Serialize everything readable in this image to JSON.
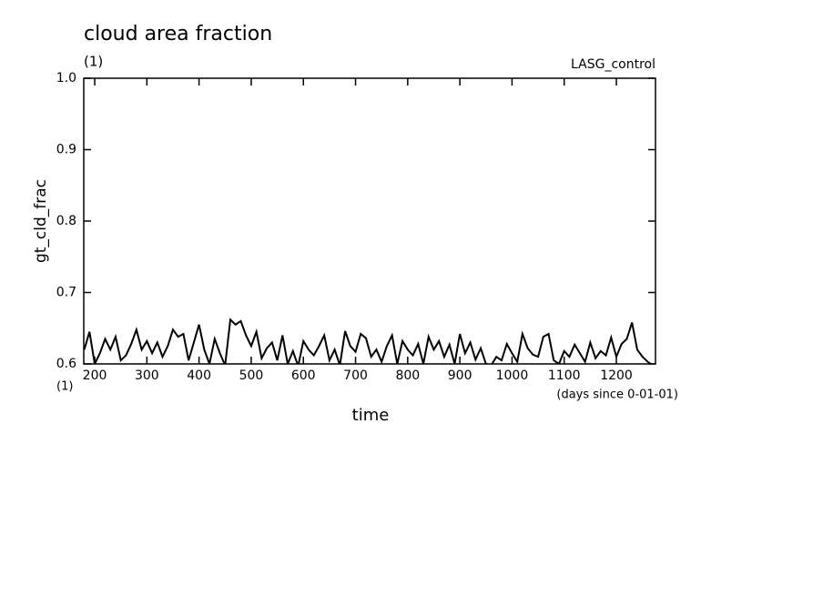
{
  "chart_data": {
    "type": "line",
    "title": "cloud area fraction",
    "subtitle": "(1)",
    "annotation": "LASG_control",
    "y_label": "gt_cld_frac",
    "x_label": "time",
    "x_unit": "(1)",
    "x_units_note": "(days since 0-01-01)",
    "color": "#000000",
    "x": [
      180,
      190,
      200,
      210,
      220,
      230,
      240,
      250,
      260,
      270,
      280,
      290,
      300,
      310,
      320,
      330,
      340,
      350,
      360,
      370,
      380,
      390,
      400,
      410,
      420,
      430,
      440,
      450,
      460,
      470,
      480,
      490,
      500,
      510,
      520,
      530,
      540,
      550,
      560,
      570,
      580,
      590,
      600,
      610,
      620,
      630,
      640,
      650,
      660,
      670,
      680,
      690,
      700,
      710,
      720,
      730,
      740,
      750,
      760,
      770,
      780,
      790,
      800,
      810,
      820,
      830,
      840,
      850,
      860,
      870,
      880,
      890,
      900,
      910,
      920,
      930,
      940,
      950,
      960,
      970,
      980,
      990,
      1000,
      1010,
      1020,
      1030,
      1040,
      1050,
      1060,
      1070,
      1080,
      1090,
      1100,
      1110,
      1120,
      1130,
      1140,
      1150,
      1160,
      1170,
      1180,
      1190,
      1200,
      1210,
      1220,
      1230,
      1240,
      1250,
      1260,
      1270
    ],
    "values": [
      0.62,
      0.645,
      0.6,
      0.615,
      0.635,
      0.62,
      0.638,
      0.605,
      0.612,
      0.628,
      0.648,
      0.62,
      0.632,
      0.615,
      0.63,
      0.61,
      0.625,
      0.648,
      0.638,
      0.642,
      0.605,
      0.63,
      0.655,
      0.62,
      0.6,
      0.635,
      0.615,
      0.598,
      0.662,
      0.655,
      0.66,
      0.64,
      0.625,
      0.645,
      0.608,
      0.622,
      0.63,
      0.605,
      0.64,
      0.6,
      0.618,
      0.597,
      0.632,
      0.62,
      0.612,
      0.625,
      0.64,
      0.605,
      0.62,
      0.598,
      0.646,
      0.625,
      0.617,
      0.642,
      0.636,
      0.61,
      0.62,
      0.603,
      0.625,
      0.64,
      0.6,
      0.632,
      0.62,
      0.612,
      0.628,
      0.6,
      0.638,
      0.62,
      0.632,
      0.61,
      0.627,
      0.6,
      0.642,
      0.615,
      0.63,
      0.606,
      0.622,
      0.6,
      0.598,
      0.61,
      0.605,
      0.628,
      0.615,
      0.603,
      0.642,
      0.622,
      0.613,
      0.61,
      0.638,
      0.642,
      0.605,
      0.6,
      0.618,
      0.61,
      0.627,
      0.615,
      0.603,
      0.63,
      0.608,
      0.618,
      0.612,
      0.637,
      0.61,
      0.628,
      0.635,
      0.658,
      0.62,
      0.61,
      0.603,
      0.598
    ],
    "xlim": [
      179,
      1275
    ],
    "ylim": [
      0.6,
      1.0
    ],
    "xticks": [
      200,
      300,
      400,
      500,
      600,
      700,
      800,
      900,
      1000,
      1100,
      1200
    ],
    "yticks": [
      0.6,
      0.7,
      0.8,
      0.9,
      {
        "value": 1.0,
        "label": "1.0"
      }
    ]
  }
}
